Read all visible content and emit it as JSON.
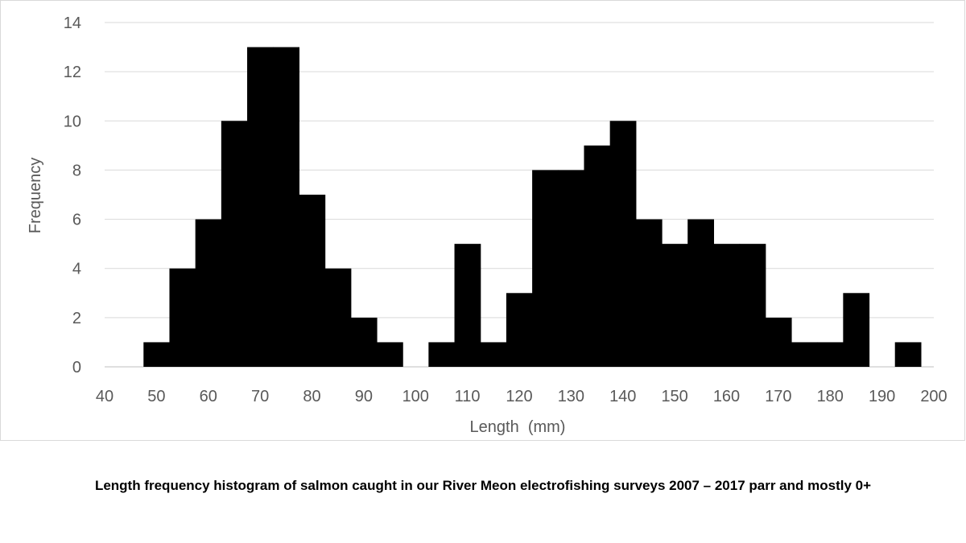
{
  "chart_data": {
    "type": "bar",
    "title": "",
    "xlabel": "Length  (mm)",
    "ylabel": "Frequency",
    "bin_width": 5,
    "xlim": [
      40,
      200
    ],
    "ylim": [
      0,
      14
    ],
    "x_ticks": [
      40,
      50,
      60,
      70,
      80,
      90,
      100,
      110,
      120,
      130,
      140,
      150,
      160,
      170,
      180,
      190,
      200
    ],
    "y_ticks": [
      0,
      2,
      4,
      6,
      8,
      10,
      12,
      14
    ],
    "grid": true,
    "bar_color": "#000000",
    "bins": [
      {
        "center": 50,
        "value": 1
      },
      {
        "center": 55,
        "value": 4
      },
      {
        "center": 60,
        "value": 6
      },
      {
        "center": 65,
        "value": 10
      },
      {
        "center": 70,
        "value": 13
      },
      {
        "center": 75,
        "value": 13
      },
      {
        "center": 80,
        "value": 7
      },
      {
        "center": 85,
        "value": 4
      },
      {
        "center": 90,
        "value": 2
      },
      {
        "center": 95,
        "value": 1
      },
      {
        "center": 100,
        "value": 0
      },
      {
        "center": 105,
        "value": 1
      },
      {
        "center": 110,
        "value": 5
      },
      {
        "center": 115,
        "value": 1
      },
      {
        "center": 120,
        "value": 3
      },
      {
        "center": 125,
        "value": 8
      },
      {
        "center": 130,
        "value": 8
      },
      {
        "center": 135,
        "value": 9
      },
      {
        "center": 140,
        "value": 10
      },
      {
        "center": 145,
        "value": 6
      },
      {
        "center": 150,
        "value": 5
      },
      {
        "center": 155,
        "value": 6
      },
      {
        "center": 160,
        "value": 5
      },
      {
        "center": 165,
        "value": 5
      },
      {
        "center": 170,
        "value": 2
      },
      {
        "center": 175,
        "value": 1
      },
      {
        "center": 180,
        "value": 1
      },
      {
        "center": 185,
        "value": 3
      },
      {
        "center": 190,
        "value": 0
      },
      {
        "center": 195,
        "value": 1
      }
    ]
  },
  "caption": "Length frequency histogram of salmon caught in our River Meon electrofishing surveys 2007 – 2017 parr and mostly 0+"
}
